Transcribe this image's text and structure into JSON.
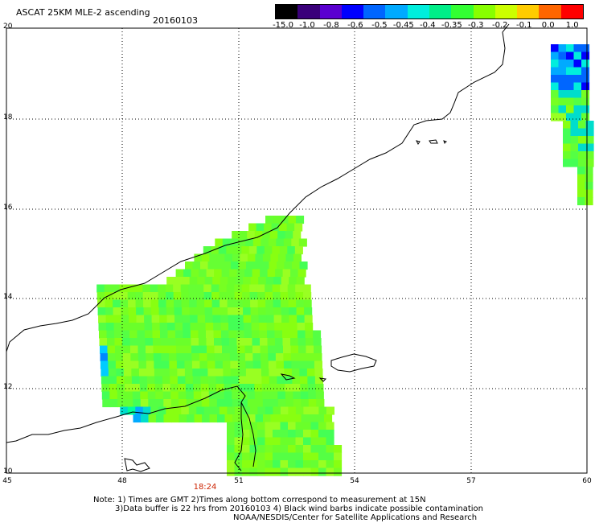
{
  "title": "ASCAT 25KM MLE-2 ascending",
  "date": "20160103",
  "colorbar": {
    "labels": [
      "-15.0",
      "-1.0",
      "-0.8",
      "-0.6",
      "-0.5",
      "-0.45",
      "-0.4",
      "-0.35",
      "-0.3",
      "-0.2",
      "-0.1",
      "0.0",
      "1.0"
    ],
    "colors": [
      "#000000",
      "#3a007a",
      "#5a00d0",
      "#0000ff",
      "#0066ff",
      "#00aaff",
      "#00eedd",
      "#00ee88",
      "#33ff33",
      "#88ff00",
      "#ccff00",
      "#ffcc00",
      "#ff6600",
      "#ff0000"
    ]
  },
  "axes": {
    "lon_labels": [
      "45",
      "48",
      "51",
      "54",
      "57",
      "60"
    ],
    "lat_labels": [
      "20",
      "18",
      "16",
      "14",
      "12",
      "10"
    ]
  },
  "time_label": "18:24",
  "notes": {
    "line1": "Note: 1) Times are GMT 2)Times along bottom correspond to measurement at 15N",
    "line2": "3)Data buffer is 22 hrs from 20160103 4) Black wind barbs indicate possible contamination",
    "line3": "NOAA/NESDIS/Center for Satellite Applications and Research"
  }
}
